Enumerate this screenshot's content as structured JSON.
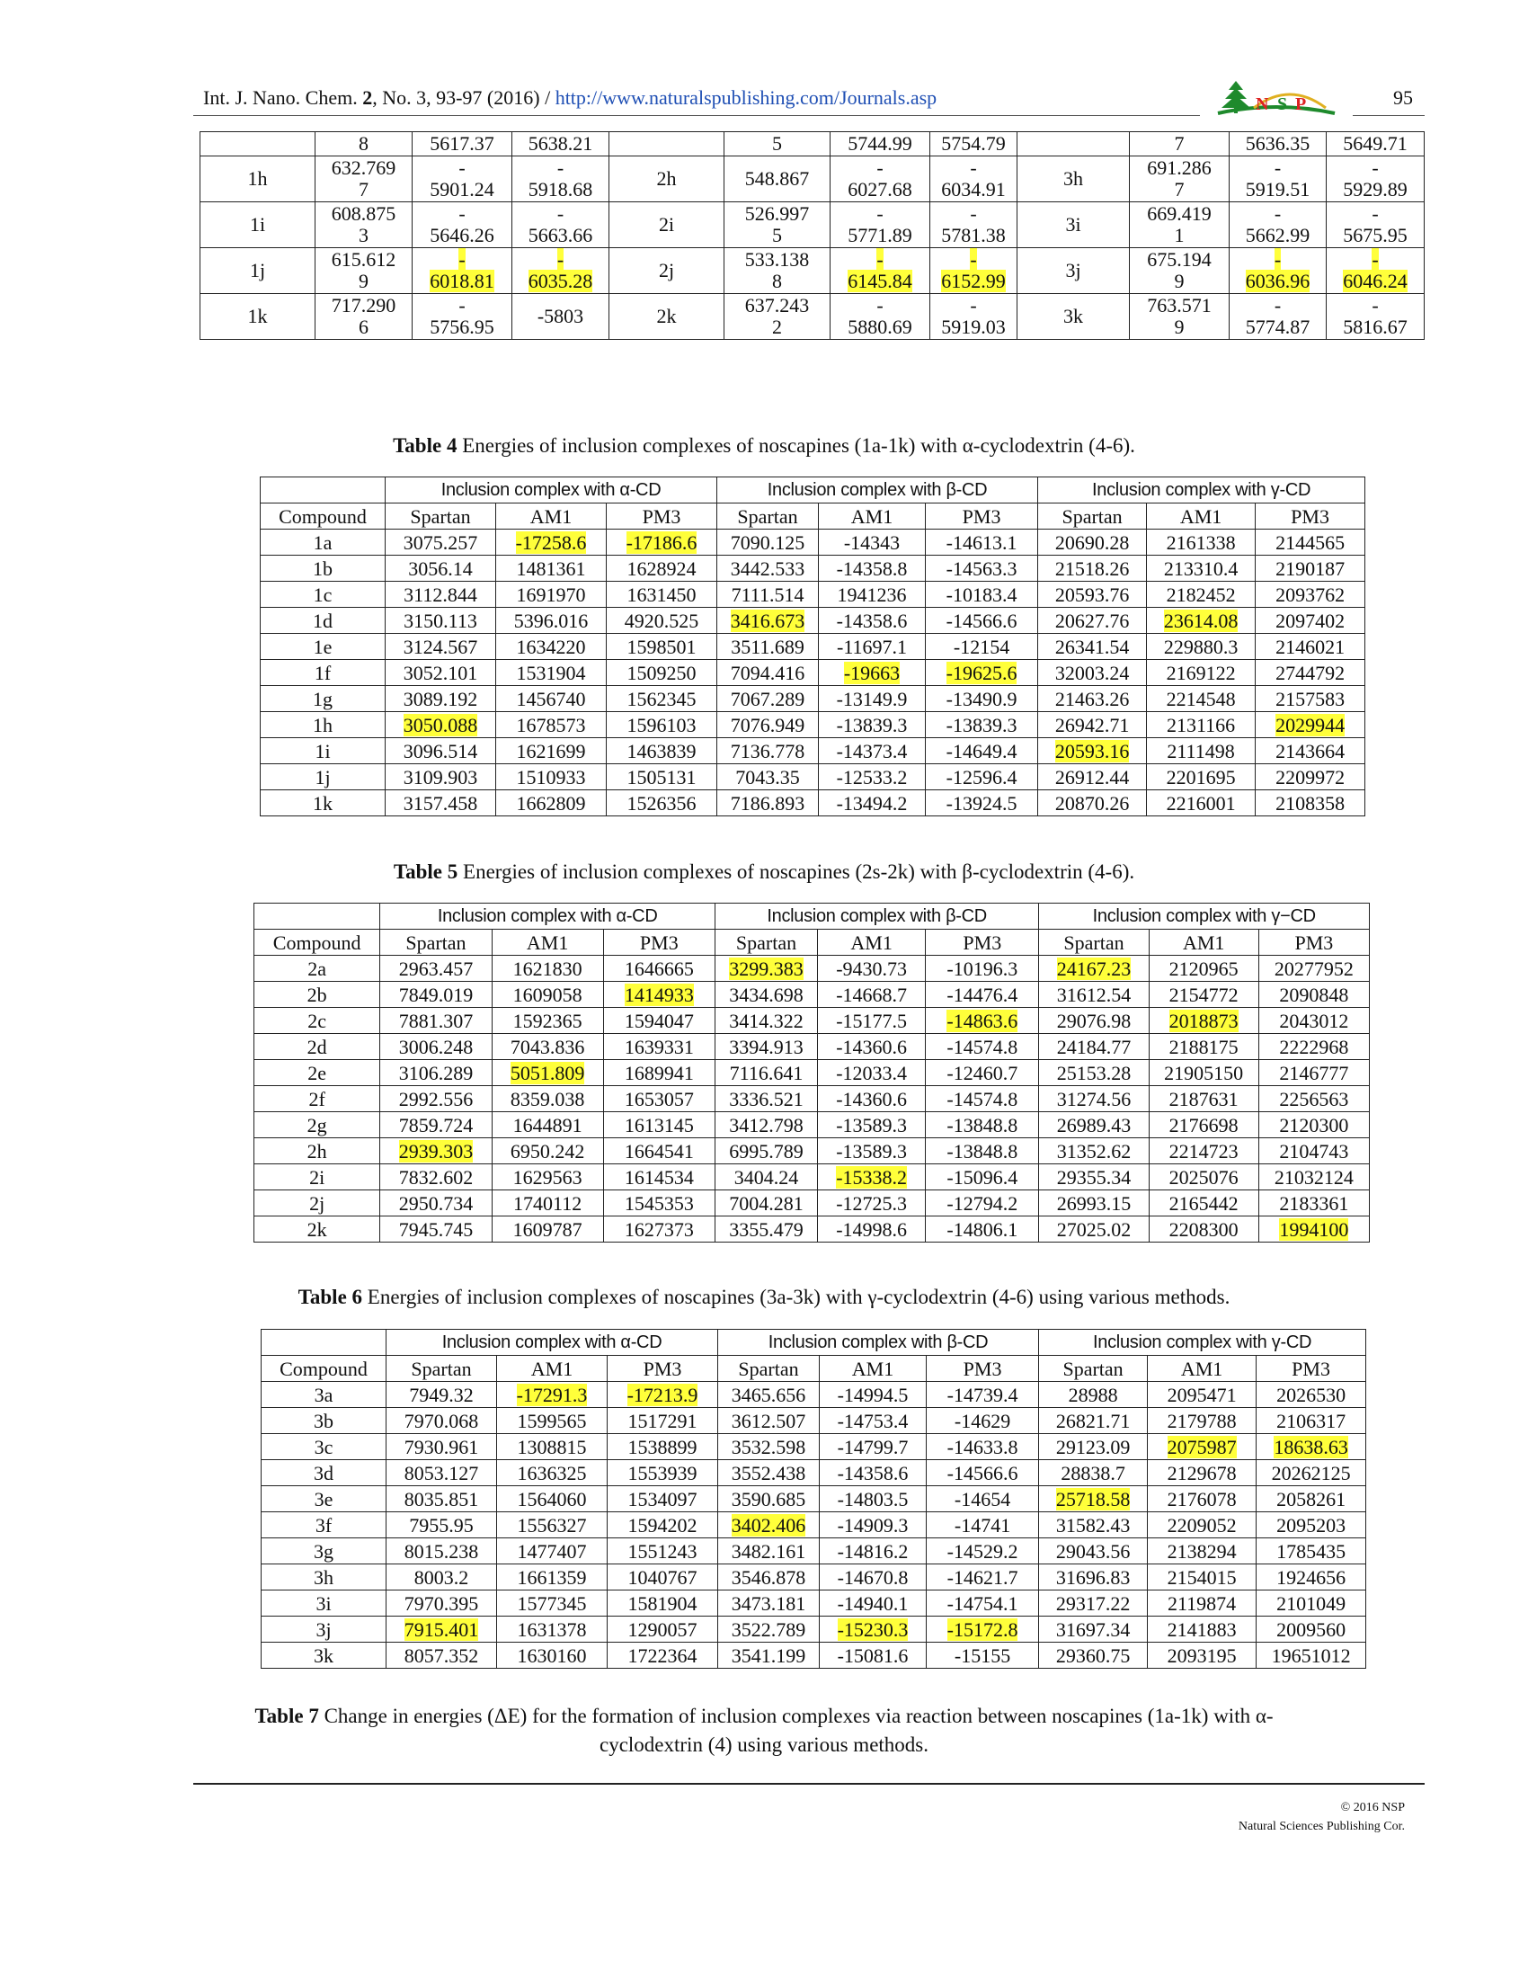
{
  "header": {
    "journal": "Int. J. Nano. Chem. ",
    "volume": "2",
    "issue_pages": ", No. 3, 93-97 (2016) / ",
    "url": "http://www.naturalspublishing.com/Journals.asp",
    "logo_text": "NSP",
    "page_number": "95"
  },
  "colors": {
    "highlight": "#ffff3a",
    "link": "#1f4fb4"
  },
  "top_table": {
    "rows": [
      [
        "",
        "8",
        "5617.37",
        "5638.21",
        "",
        "5",
        "5744.99",
        "5754.79",
        "",
        "7",
        "5636.35",
        "5649.71"
      ],
      [
        "1h",
        "632.769\n7",
        "-\n5901.24",
        "-\n5918.68",
        "2h",
        "548.867",
        "-\n6027.68",
        "-\n6034.91",
        "3h",
        "691.286\n7",
        "-\n5919.51",
        "-\n5929.89"
      ],
      [
        "1i",
        "608.875\n3",
        "-\n5646.26",
        "-\n5663.66",
        "2i",
        "526.997\n5",
        "-\n5771.89",
        "-\n5781.38",
        "3i",
        "669.419\n1",
        "-\n5662.99",
        "-\n5675.95"
      ],
      [
        "1j",
        "615.612\n9",
        "-\n6018.81",
        "-\n6035.28",
        "2j",
        "533.138\n8",
        "-\n6145.84",
        "-\n6152.99",
        "3j",
        "675.194\n9",
        "-\n6036.96",
        "-\n6046.24"
      ],
      [
        "1k",
        "717.290\n6",
        "-\n5756.95",
        "-5803",
        "2k",
        "637.243\n2",
        "-\n5880.69",
        "-\n5919.03",
        "3k",
        "763.571\n9",
        "-\n5774.87",
        "-\n5816.67"
      ]
    ],
    "highlighted": [
      "3,2",
      "3,3",
      "3,6",
      "3,7",
      "3,10",
      "3,11"
    ]
  },
  "table4": {
    "caption_label": "Table 4",
    "caption_text": " Energies of inclusion complexes of noscapines (1a-1k) with α-cyclodextrin (4-6).",
    "groups": [
      "Inclusion complex with α-CD",
      "Inclusion complex with β-CD",
      "Inclusion complex with γ-CD"
    ],
    "methods": [
      "Compound",
      "Spartan",
      "AM1",
      "PM3",
      "Spartan",
      "AM1",
      "PM3",
      "Spartan",
      "AM1",
      "PM3"
    ],
    "rows": [
      [
        "1a",
        "3075.257",
        "-17258.6",
        "-17186.6",
        "7090.125",
        "-14343",
        "-14613.1",
        "20690.28",
        "2161338",
        "2144565"
      ],
      [
        "1b",
        "3056.14",
        "1481361",
        "1628924",
        "3442.533",
        "-14358.8",
        "-14563.3",
        "21518.26",
        "213310.4",
        "2190187"
      ],
      [
        "1c",
        "3112.844",
        "1691970",
        "1631450",
        "7111.514",
        "1941236",
        "-10183.4",
        "20593.76",
        "2182452",
        "2093762"
      ],
      [
        "1d",
        "3150.113",
        "5396.016",
        "4920.525",
        "3416.673",
        "-14358.6",
        "-14566.6",
        "20627.76",
        "23614.08",
        "2097402"
      ],
      [
        "1e",
        "3124.567",
        "1634220",
        "1598501",
        "3511.689",
        "-11697.1",
        "-12154",
        "26341.54",
        "229880.3",
        "2146021"
      ],
      [
        "1f",
        "3052.101",
        "1531904",
        "1509250",
        "7094.416",
        "-19663",
        "-19625.6",
        "32003.24",
        "2169122",
        "2744792"
      ],
      [
        "1g",
        "3089.192",
        "1456740",
        "1562345",
        "7067.289",
        "-13149.9",
        "-13490.9",
        "21463.26",
        "2214548",
        "2157583"
      ],
      [
        "1h",
        "3050.088",
        "1678573",
        "1596103",
        "7076.949",
        "-13839.3",
        "-13839.3",
        "26942.71",
        "2131166",
        "2029944"
      ],
      [
        "1i",
        "3096.514",
        "1621699",
        "1463839",
        "7136.778",
        "-14373.4",
        "-14649.4",
        "20593.16",
        "2111498",
        "2143664"
      ],
      [
        "1j",
        "3109.903",
        "1510933",
        "1505131",
        "7043.35",
        "-12533.2",
        "-12596.4",
        "26912.44",
        "2201695",
        "2209972"
      ],
      [
        "1k",
        "3157.458",
        "1662809",
        "1526356",
        "7186.893",
        "-13494.2",
        "-13924.5",
        "20870.26",
        "2216001",
        "2108358"
      ]
    ],
    "highlighted": [
      "0,2",
      "0,3",
      "3,4",
      "3,8",
      "5,5",
      "5,6",
      "7,1",
      "7,9",
      "8,7"
    ]
  },
  "table5": {
    "caption_label": "Table 5",
    "caption_text": " Energies of inclusion complexes of noscapines (2s-2k) with β-cyclodextrin (4-6).",
    "groups": [
      "Inclusion complex with α-CD",
      "Inclusion complex with β-CD",
      "Inclusion complex with γ−CD"
    ],
    "methods": [
      "Compound",
      "Spartan",
      "AM1",
      "PM3",
      "Spartan",
      "AM1",
      "PM3",
      "Spartan",
      "AM1",
      "PM3"
    ],
    "rows": [
      [
        "2a",
        "2963.457",
        "1621830",
        "1646665",
        "3299.383",
        "-9430.73",
        "-10196.3",
        "24167.23",
        "2120965",
        "20277952"
      ],
      [
        "2b",
        "7849.019",
        "1609058",
        "1414933",
        "3434.698",
        "-14668.7",
        "-14476.4",
        "31612.54",
        "2154772",
        "2090848"
      ],
      [
        "2c",
        "7881.307",
        "1592365",
        "1594047",
        "3414.322",
        "-15177.5",
        "-14863.6",
        "29076.98",
        "2018873",
        "2043012"
      ],
      [
        "2d",
        "3006.248",
        "7043.836",
        "1639331",
        "3394.913",
        "-14360.6",
        "-14574.8",
        "24184.77",
        "2188175",
        "2222968"
      ],
      [
        "2e",
        "3106.289",
        "5051.809",
        "1689941",
        "7116.641",
        "-12033.4",
        "-12460.7",
        "25153.28",
        "21905150",
        "2146777"
      ],
      [
        "2f",
        "2992.556",
        "8359.038",
        "1653057",
        "3336.521",
        "-14360.6",
        "-14574.8",
        "31274.56",
        "2187631",
        "2256563"
      ],
      [
        "2g",
        "7859.724",
        "1644891",
        "1613145",
        "3412.798",
        "-13589.3",
        "-13848.8",
        "26989.43",
        "2176698",
        "2120300"
      ],
      [
        "2h",
        "2939.303",
        "6950.242",
        "1664541",
        "6995.789",
        "-13589.3",
        "-13848.8",
        "31352.62",
        "2214723",
        "2104743"
      ],
      [
        "2i",
        "7832.602",
        "1629563",
        "1614534",
        "3404.24",
        "-15338.2",
        "-15096.4",
        "29355.34",
        "2025076",
        "21032124"
      ],
      [
        "2j",
        "2950.734",
        "1740112",
        "1545353",
        "7004.281",
        "-12725.3",
        "-12794.2",
        "26993.15",
        "2165442",
        "2183361"
      ],
      [
        "2k",
        "7945.745",
        "1609787",
        "1627373",
        "3355.479",
        "-14998.6",
        "-14806.1",
        "27025.02",
        "2208300",
        "1994100"
      ]
    ],
    "highlighted": [
      "0,4",
      "0,7",
      "1,3",
      "2,6",
      "2,8",
      "4,2",
      "7,1",
      "8,5",
      "10,9"
    ]
  },
  "table6": {
    "caption_label": "Table 6",
    "caption_text": " Energies of inclusion complexes of noscapines (3a-3k) with γ-cyclodextrin (4-6) using various methods.",
    "groups": [
      "Inclusion complex with α-CD",
      "Inclusion complex with β-CD",
      "Inclusion complex with γ-CD"
    ],
    "methods": [
      "Compound",
      "Spartan",
      "AM1",
      "PM3",
      "Spartan",
      "AM1",
      "PM3",
      "Spartan",
      "AM1",
      "PM3"
    ],
    "rows": [
      [
        "3a",
        "7949.32",
        "-17291.3",
        "-17213.9",
        "3465.656",
        "-14994.5",
        "-14739.4",
        "28988",
        "2095471",
        "2026530"
      ],
      [
        "3b",
        "7970.068",
        "1599565",
        "1517291",
        "3612.507",
        "-14753.4",
        "-14629",
        "26821.71",
        "2179788",
        "2106317"
      ],
      [
        "3c",
        "7930.961",
        "1308815",
        "1538899",
        "3532.598",
        "-14799.7",
        "-14633.8",
        "29123.09",
        "2075987",
        "18638.63"
      ],
      [
        "3d",
        "8053.127",
        "1636325",
        "1553939",
        "3552.438",
        "-14358.6",
        "-14566.6",
        "28838.7",
        "2129678",
        "20262125"
      ],
      [
        "3e",
        "8035.851",
        "1564060",
        "1534097",
        "3590.685",
        "-14803.5",
        "-14654",
        "25718.58",
        "2176078",
        "2058261"
      ],
      [
        "3f",
        "7955.95",
        "1556327",
        "1594202",
        "3402.406",
        "-14909.3",
        "-14741",
        "31582.43",
        "2209052",
        "2095203"
      ],
      [
        "3g",
        "8015.238",
        "1477407",
        "1551243",
        "3482.161",
        "-14816.2",
        "-14529.2",
        "29043.56",
        "2138294",
        "1785435"
      ],
      [
        "3h",
        "8003.2",
        "1661359",
        "1040767",
        "3546.878",
        "-14670.8",
        "-14621.7",
        "31696.83",
        "2154015",
        "1924656"
      ],
      [
        "3i",
        "7970.395",
        "1577345",
        "1581904",
        "3473.181",
        "-14940.1",
        "-14754.1",
        "29317.22",
        "2119874",
        "2101049"
      ],
      [
        "3j",
        "7915.401",
        "1631378",
        "1290057",
        "3522.789",
        "-15230.3",
        "-15172.8",
        "31697.34",
        "2141883",
        "2009560"
      ],
      [
        "3k",
        "8057.352",
        "1630160",
        "1722364",
        "3541.199",
        "-15081.6",
        "-15155",
        "29360.75",
        "2093195",
        "19651012"
      ]
    ],
    "highlighted": [
      "0,2",
      "0,3",
      "2,8",
      "2,9",
      "4,7",
      "5,4",
      "9,1",
      "9,5",
      "9,6"
    ]
  },
  "table7": {
    "caption_label": "Table 7",
    "caption_line1": " Change in energies (ΔE) for the formation of inclusion complexes via reaction between noscapines (1a-1k) with α-",
    "caption_line2": "cyclodextrin (4) using various methods."
  },
  "footer": {
    "copyright": "© 2016 NSP",
    "publisher": "Natural Sciences Publishing Cor."
  }
}
